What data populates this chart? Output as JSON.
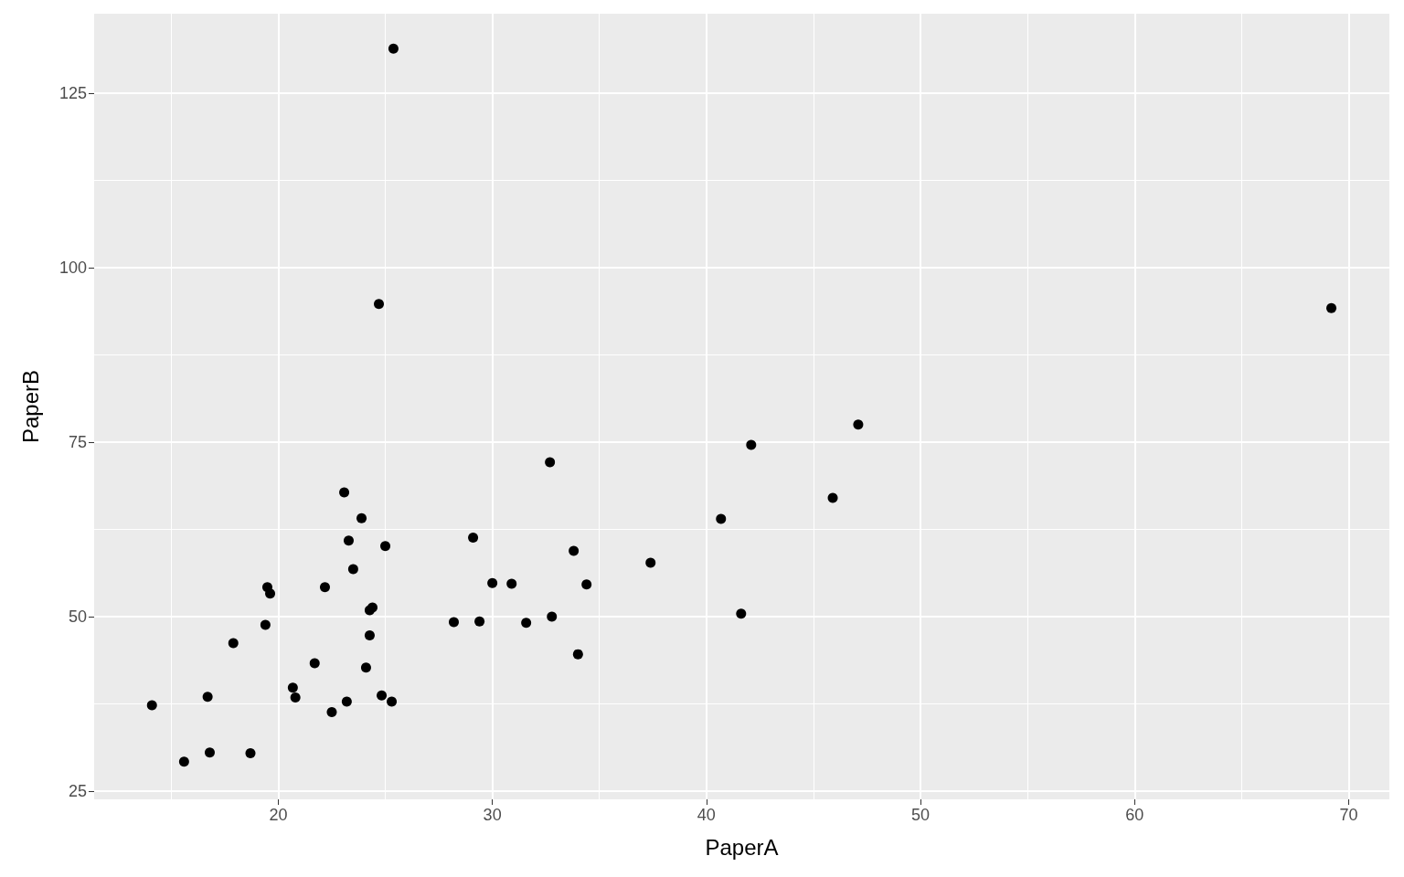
{
  "chart_data": {
    "type": "scatter",
    "xlabel": "PaperA",
    "ylabel": "PaperB",
    "x": [
      25.38,
      24.7,
      69.19,
      47.09,
      42.09,
      32.69,
      45.9,
      23.08,
      23.89,
      40.68,
      29.1,
      23.29,
      25.0,
      33.8,
      37.39,
      23.5,
      30.0,
      30.9,
      34.4,
      19.49,
      22.18,
      19.62,
      24.4,
      24.27,
      41.62,
      32.78,
      28.2,
      29.4,
      31.58,
      19.4,
      24.27,
      17.9,
      34.0,
      21.7,
      24.1,
      20.68,
      16.7,
      20.8,
      24.83,
      23.2,
      25.3,
      14.1,
      22.5,
      16.8,
      18.7,
      15.6
    ],
    "values": [
      131.4,
      94.8,
      94.2,
      77.5,
      74.6,
      72.1,
      67.0,
      67.8,
      64.1,
      64.0,
      61.3,
      60.9,
      60.1,
      59.4,
      57.7,
      56.8,
      54.8,
      54.7,
      54.6,
      54.2,
      54.2,
      53.3,
      51.3,
      50.9,
      50.4,
      50.0,
      49.2,
      49.3,
      49.1,
      48.8,
      47.3,
      46.2,
      44.6,
      43.3,
      42.7,
      39.8,
      38.5,
      38.4,
      38.7,
      37.8,
      37.8,
      37.3,
      36.3,
      30.5,
      30.4,
      29.2
    ],
    "color": "#000000",
    "marker": "circle",
    "grid": true,
    "xlim": [
      11.4,
      71.9
    ],
    "xticks": [
      20,
      30,
      40,
      50,
      60,
      70
    ],
    "ylim": [
      23.8,
      136.4
    ],
    "yticks": [
      25,
      50,
      75,
      100,
      125
    ]
  }
}
